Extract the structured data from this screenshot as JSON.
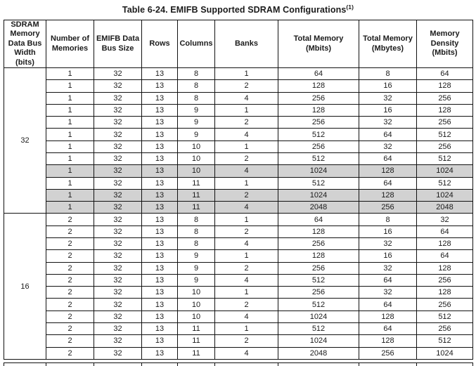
{
  "title": {
    "text": "Table 6-24. EMIFB Supported SDRAM Configurations",
    "superscript": "(1)"
  },
  "table": {
    "headers": [
      "SDRAM\nMemory\nData Bus\nWidth\n(bits)",
      "Number of\nMemories",
      "EMIFB Data\nBus Size",
      "Rows",
      "Columns",
      "Banks",
      "Total Memory\n(Mbits)",
      "Total Memory\n(Mbytes)",
      "Memory\nDensity\n(Mbits)"
    ],
    "highlight_color": "#d2d2d2",
    "sections": [
      {
        "bus_width": "32",
        "rows": [
          {
            "cells": [
              "1",
              "32",
              "13",
              "8",
              "1",
              "64",
              "8",
              "64"
            ],
            "shaded": false
          },
          {
            "cells": [
              "1",
              "32",
              "13",
              "8",
              "2",
              "128",
              "16",
              "128"
            ],
            "shaded": false
          },
          {
            "cells": [
              "1",
              "32",
              "13",
              "8",
              "4",
              "256",
              "32",
              "256"
            ],
            "shaded": false
          },
          {
            "cells": [
              "1",
              "32",
              "13",
              "9",
              "1",
              "128",
              "16",
              "128"
            ],
            "shaded": false
          },
          {
            "cells": [
              "1",
              "32",
              "13",
              "9",
              "2",
              "256",
              "32",
              "256"
            ],
            "shaded": false
          },
          {
            "cells": [
              "1",
              "32",
              "13",
              "9",
              "4",
              "512",
              "64",
              "512"
            ],
            "shaded": false
          },
          {
            "cells": [
              "1",
              "32",
              "13",
              "10",
              "1",
              "256",
              "32",
              "256"
            ],
            "shaded": false
          },
          {
            "cells": [
              "1",
              "32",
              "13",
              "10",
              "2",
              "512",
              "64",
              "512"
            ],
            "shaded": false
          },
          {
            "cells": [
              "1",
              "32",
              "13",
              "10",
              "4",
              "1024",
              "128",
              "1024"
            ],
            "shaded": true
          },
          {
            "cells": [
              "1",
              "32",
              "13",
              "11",
              "1",
              "512",
              "64",
              "512"
            ],
            "shaded": false
          },
          {
            "cells": [
              "1",
              "32",
              "13",
              "11",
              "2",
              "1024",
              "128",
              "1024"
            ],
            "shaded": true
          },
          {
            "cells": [
              "1",
              "32",
              "13",
              "11",
              "4",
              "2048",
              "256",
              "2048"
            ],
            "shaded": true
          }
        ]
      },
      {
        "bus_width": "16",
        "rows": [
          {
            "cells": [
              "2",
              "32",
              "13",
              "8",
              "1",
              "64",
              "8",
              "32"
            ],
            "shaded": false
          },
          {
            "cells": [
              "2",
              "32",
              "13",
              "8",
              "2",
              "128",
              "16",
              "64"
            ],
            "shaded": false
          },
          {
            "cells": [
              "2",
              "32",
              "13",
              "8",
              "4",
              "256",
              "32",
              "128"
            ],
            "shaded": false
          },
          {
            "cells": [
              "2",
              "32",
              "13",
              "9",
              "1",
              "128",
              "16",
              "64"
            ],
            "shaded": false
          },
          {
            "cells": [
              "2",
              "32",
              "13",
              "9",
              "2",
              "256",
              "32",
              "128"
            ],
            "shaded": false
          },
          {
            "cells": [
              "2",
              "32",
              "13",
              "9",
              "4",
              "512",
              "64",
              "256"
            ],
            "shaded": false
          },
          {
            "cells": [
              "2",
              "32",
              "13",
              "10",
              "1",
              "256",
              "32",
              "128"
            ],
            "shaded": false
          },
          {
            "cells": [
              "2",
              "32",
              "13",
              "10",
              "2",
              "512",
              "64",
              "256"
            ],
            "shaded": false
          },
          {
            "cells": [
              "2",
              "32",
              "13",
              "10",
              "4",
              "1024",
              "128",
              "512"
            ],
            "shaded": false
          },
          {
            "cells": [
              "2",
              "32",
              "13",
              "11",
              "1",
              "512",
              "64",
              "256"
            ],
            "shaded": false
          },
          {
            "cells": [
              "2",
              "32",
              "13",
              "11",
              "2",
              "1024",
              "128",
              "512"
            ],
            "shaded": false
          },
          {
            "cells": [
              "2",
              "32",
              "13",
              "11",
              "4",
              "2048",
              "256",
              "1024"
            ],
            "shaded": false
          }
        ]
      }
    ]
  }
}
